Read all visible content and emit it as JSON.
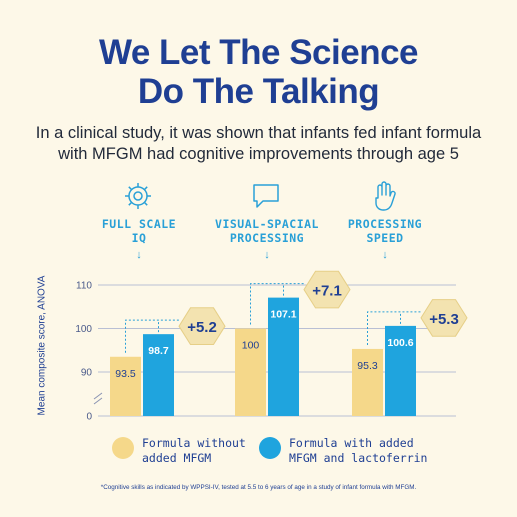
{
  "header": {
    "title_line1": "We Let The Science",
    "title_line2": "Do The Talking",
    "subtitle_line1": "In a clinical study, it was shown that infants fed infant formula",
    "subtitle_line2": "with MFGM had cognitive improvements through age 5"
  },
  "categories": [
    {
      "line1": "FULL SCALE",
      "line2": "IQ",
      "icon": "gear-head-icon"
    },
    {
      "line1": "VISUAL-SPACIAL",
      "line2": "PROCESSING",
      "icon": "chat-bubble-icon"
    },
    {
      "line1": "PROCESSING",
      "line2": "SPEED",
      "icon": "hand-icon"
    }
  ],
  "legend": {
    "without": {
      "line1": "Formula without",
      "line2": "added MFGM"
    },
    "with": {
      "line1": "Formula with added",
      "line2": "MFGM and lactoferrin"
    }
  },
  "footnote": "*Cognitive skills as indicated by WPPSI-IV, tested at 5.5 to 6 years of age in a study of infant formula with MFGM.",
  "colors": {
    "background": "#fdf8e8",
    "title": "#1f3f93",
    "accent_blue": "#29a0d7",
    "bar_without": "#f5d88a",
    "bar_with": "#1fa4de",
    "badge": "#f3e3b0"
  },
  "chart_data": {
    "type": "bar",
    "categories": [
      "FULL SCALE IQ",
      "VISUAL-SPACIAL PROCESSING",
      "PROCESSING SPEED"
    ],
    "series": [
      {
        "name": "Formula without added MFGM",
        "values": [
          93.5,
          100,
          95.3
        ]
      },
      {
        "name": "Formula with added MFGM and lactoferrin",
        "values": [
          98.7,
          107.1,
          100.6
        ]
      }
    ],
    "differences": [
      "+5.2",
      "+7.1",
      "+5.3"
    ],
    "ylabel": "Mean composite score, ANOVA",
    "yticks": [
      0,
      90,
      100,
      110
    ],
    "axis_break": true,
    "grid": true,
    "legend_position": "bottom"
  }
}
